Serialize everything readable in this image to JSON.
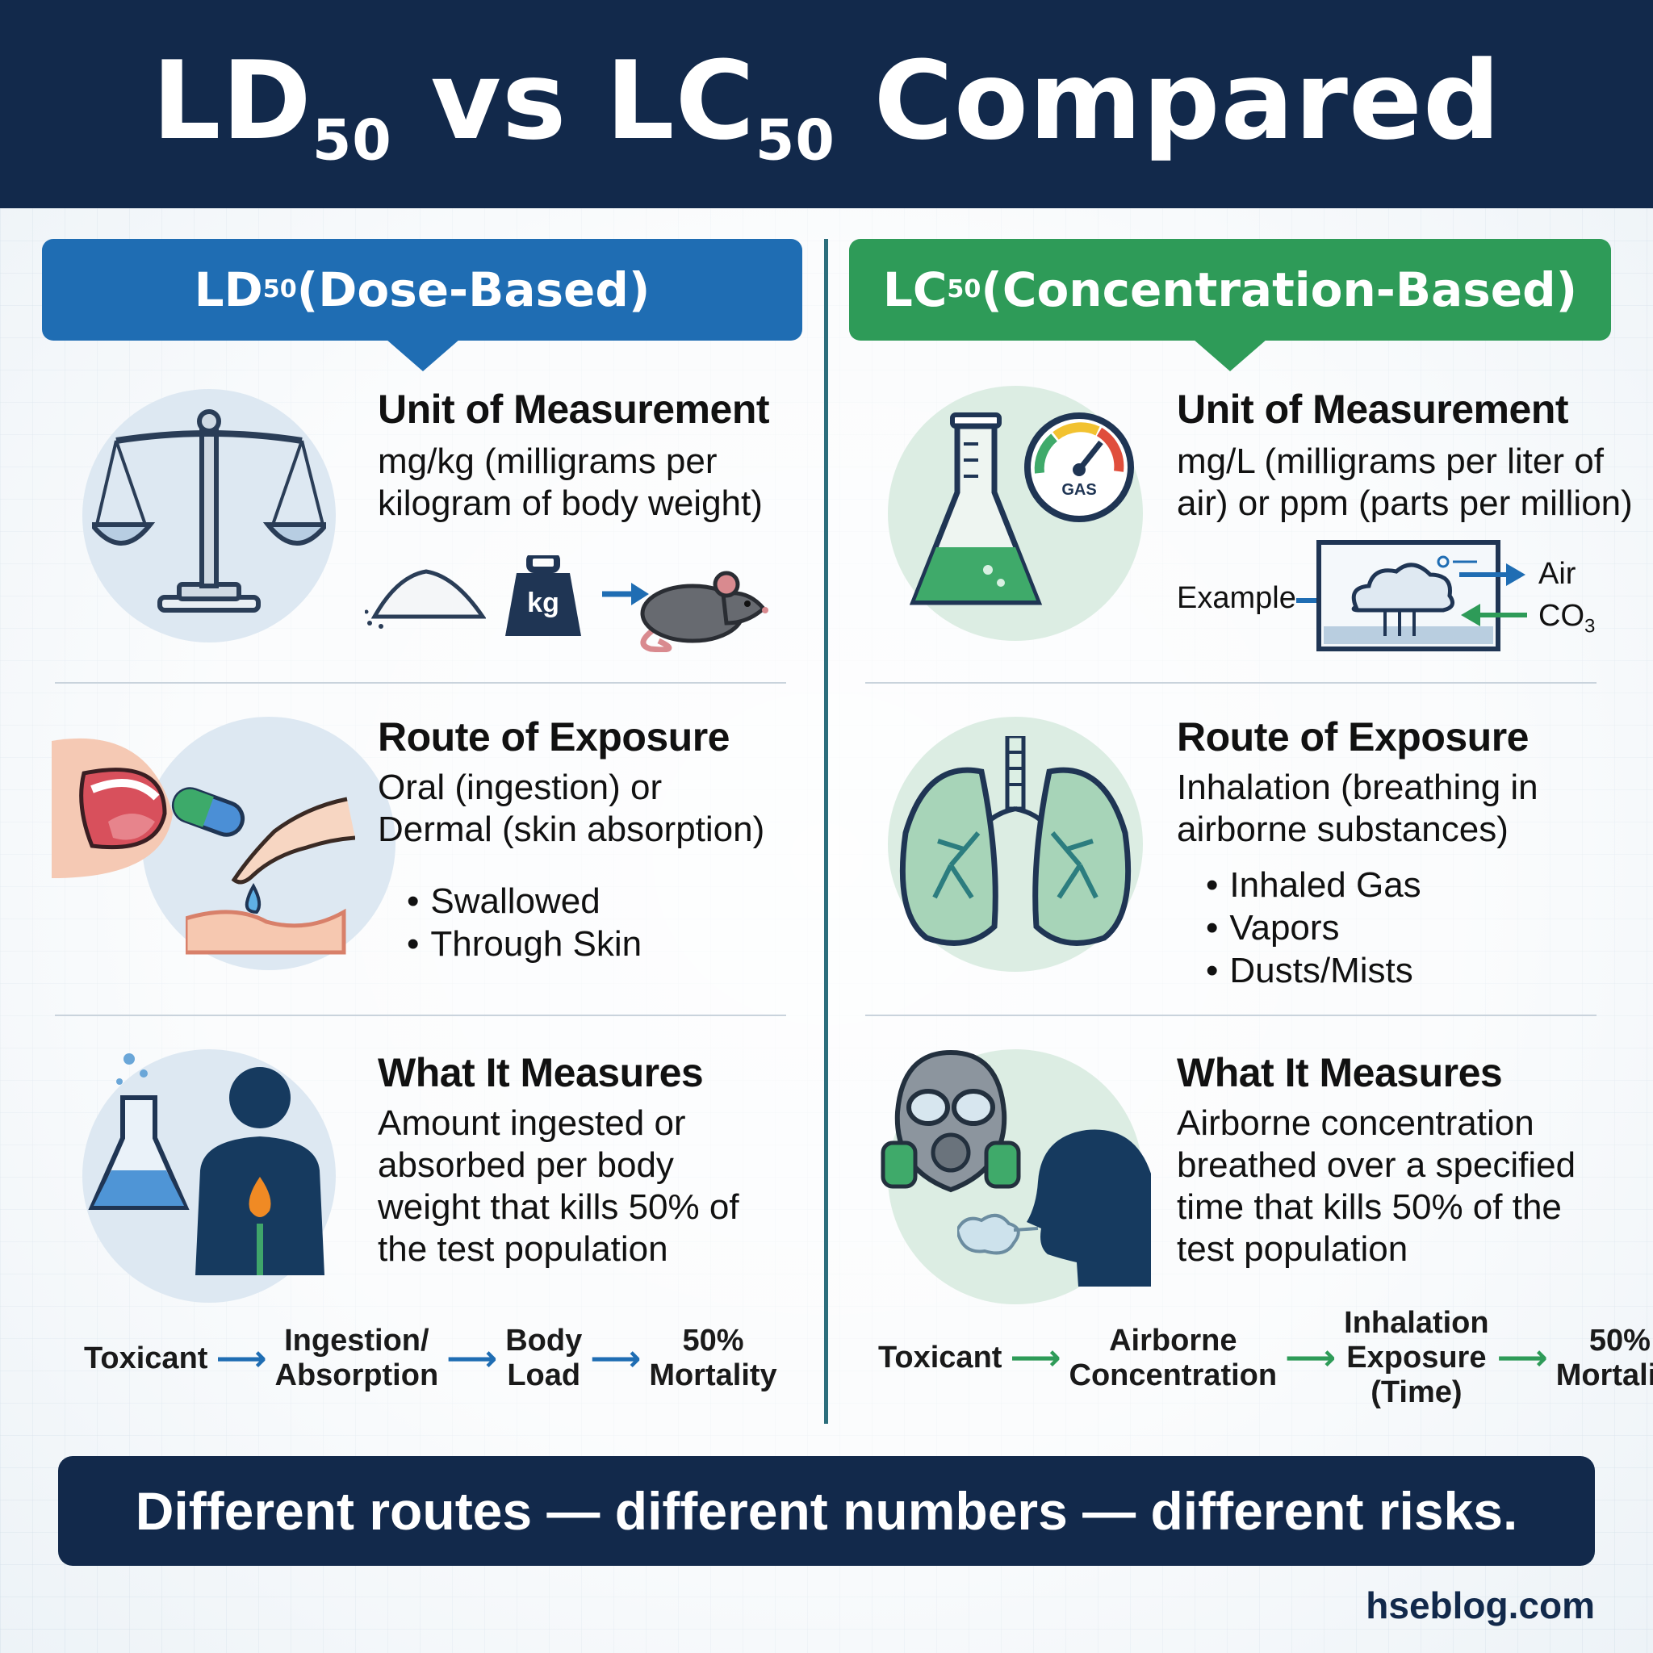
{
  "header": {
    "title_ld": "LD",
    "title_sub1": "50",
    "title_vs": " vs LC",
    "title_sub2": "50",
    "title_end": " Compared"
  },
  "left": {
    "head_main": "LD",
    "head_sub": "50",
    "head_rest": " (Dose-Based)",
    "unit": {
      "title": "Unit of Measurement",
      "body_line1": "mg/kg (milligrams per",
      "body_line2": "kilogram of body weight)",
      "weight_label": "kg"
    },
    "route": {
      "title": "Route of Exposure",
      "body_line1": "Oral (ingestion) or",
      "body_line2": "Dermal (skin absorption)",
      "bullets": [
        "Swallowed",
        "Through Skin"
      ]
    },
    "measures": {
      "title": "What It Measures",
      "lines": [
        "Amount ingested or",
        "absorbed per body",
        "weight that kills 50% of",
        "the test population"
      ]
    },
    "flow": [
      {
        "l1": "Toxicant",
        "l2": ""
      },
      {
        "l1": "Ingestion/",
        "l2": "Absorption"
      },
      {
        "l1": "Body",
        "l2": "Load"
      },
      {
        "l1": "50%",
        "l2": "Mortality"
      }
    ]
  },
  "right": {
    "head_main": "LC",
    "head_sub": "50",
    "head_rest": " (Concentration-Based)",
    "unit": {
      "title": "Unit of Measurement",
      "body_line1": "mg/L (milligrams per liter of",
      "body_line2": "air) or ppm (parts per million)",
      "gauge_label": "GAS",
      "example_label": "Example",
      "air_label": "Air",
      "co_label": "CO",
      "co_sub": "3"
    },
    "route": {
      "title": "Route of Exposure",
      "body_line1": "Inhalation (breathing in",
      "body_line2": "airborne substances)",
      "bullets": [
        "Inhaled Gas",
        "Vapors",
        "Dusts/Mists"
      ]
    },
    "measures": {
      "title": "What It Measures",
      "lines": [
        "Airborne concentration",
        "breathed over a specified",
        "time that kills 50% of the",
        "test population"
      ]
    },
    "flow": [
      {
        "l1": "Toxicant",
        "l2": "",
        "l3": ""
      },
      {
        "l1": "Airborne",
        "l2": "Concentration",
        "l3": ""
      },
      {
        "l1": "Inhalation",
        "l2": "Exposure",
        "l3": "(Time)"
      },
      {
        "l1": "50%",
        "l2": "Mortality",
        "l3": ""
      }
    ]
  },
  "footer": {
    "tagline": "Different routes — different numbers — different risks.",
    "site": "hseblog.com"
  },
  "colors": {
    "navy": "#12294b",
    "blue": "#1f6db3",
    "green": "#2e9b58"
  }
}
